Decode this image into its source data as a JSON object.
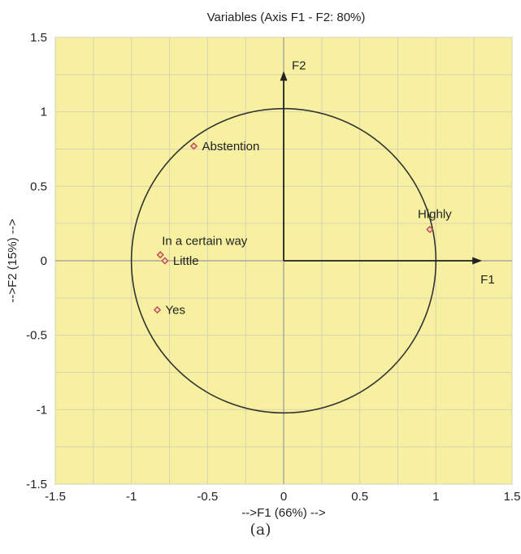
{
  "chart_data": {
    "type": "scatter",
    "title": "Variables (Axis F1 - F2: 80%)",
    "xlabel": "-->F1 (66%) -->",
    "ylabel": "-->F2 (15%) -->",
    "xlim": [
      -1.5,
      1.5
    ],
    "ylim": [
      -1.5,
      1.5
    ],
    "xticks": [
      "-1.5",
      "-1",
      "-0.5",
      "0",
      "0.5",
      "1",
      "1.5"
    ],
    "yticks": [
      "-1.5",
      "-1",
      "-0.5",
      "0",
      "0.5",
      "1",
      "1.5"
    ],
    "grid": true,
    "background_color": "#f6f0a0",
    "grid_color": "#d9d3b4",
    "point_color": "#c0504d",
    "correlation_circle_radius": 1,
    "axis_arrows": [
      {
        "label": "F1",
        "to": [
          1.25,
          0
        ]
      },
      {
        "label": "F2",
        "to": [
          0,
          1.22
        ]
      }
    ],
    "points": [
      {
        "label": "Abstention",
        "x": -0.59,
        "y": 0.77
      },
      {
        "label": "Highly",
        "x": 0.96,
        "y": 0.21
      },
      {
        "label": "In a certain way",
        "x": -0.81,
        "y": 0.04
      },
      {
        "label": "Little",
        "x": -0.78,
        "y": 0.0
      },
      {
        "label": "Yes",
        "x": -0.83,
        "y": -0.33
      }
    ]
  },
  "caption": "(a)"
}
